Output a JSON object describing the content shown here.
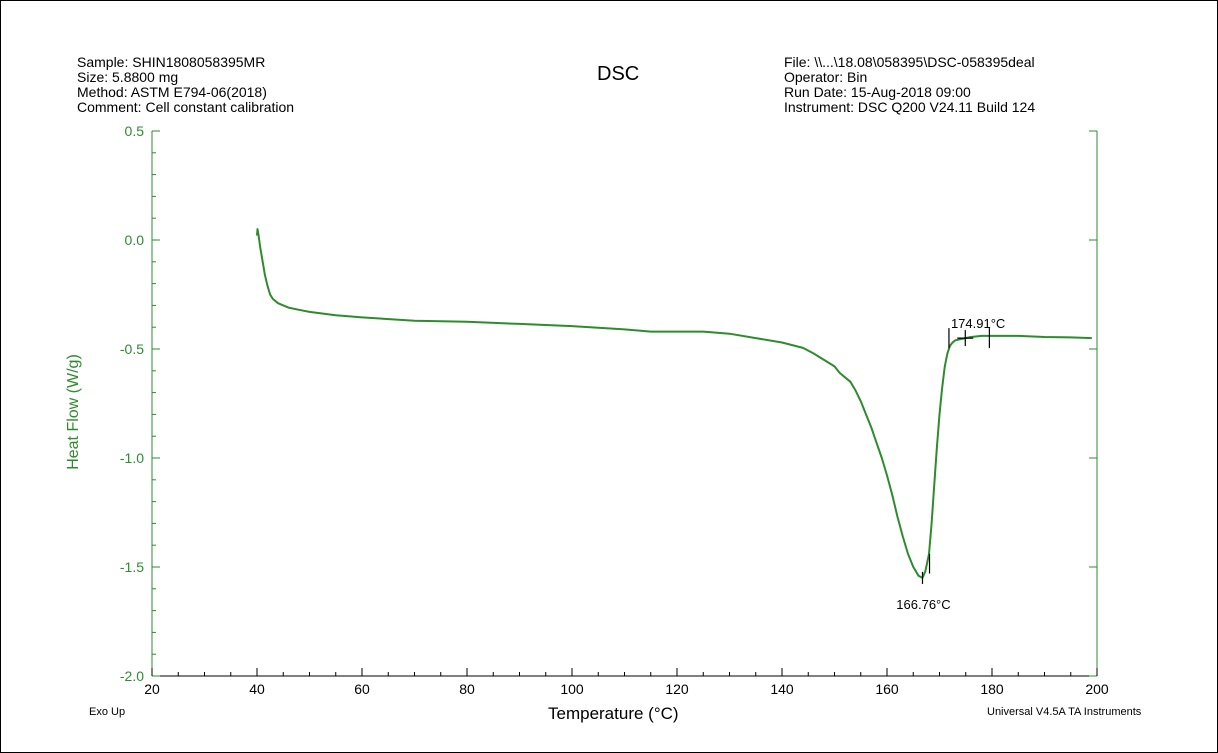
{
  "header": {
    "left": [
      "Sample: SHIN1808058395MR",
      "Size:  5.8800 mg",
      "Method: ASTM E794-06(2018)",
      "Comment: Cell constant calibration"
    ],
    "right": [
      "File: \\\\...\\18.08\\058395\\DSC-058395deal",
      "Operator: Bin",
      "Run Date: 15-Aug-2018 09:00",
      "Instrument: DSC Q200 V24.11 Build 124"
    ]
  },
  "footer": {
    "left": "Exo Up",
    "right": "Universal V4.5A TA Instruments"
  },
  "colors": {
    "curve": "#2e8b2e",
    "axis_y": "#2e8b2e",
    "axis_x": "#000000"
  },
  "chart_data": {
    "type": "line",
    "title": "DSC",
    "xlabel": "Temperature (°C)",
    "ylabel": "Heat Flow (W/g)",
    "xlim": [
      20,
      200
    ],
    "ylim": [
      -2.0,
      0.5
    ],
    "xticks": [
      "20",
      "40",
      "60",
      "80",
      "100",
      "120",
      "140",
      "160",
      "180",
      "200"
    ],
    "yticks": [
      "0.5",
      "0.0",
      "-0.5",
      "-1.0",
      "-1.5",
      "-2.0"
    ],
    "grid": false,
    "series": [
      {
        "x": [
          40.0,
          40.1,
          40.3,
          40.6,
          41.0,
          41.5,
          42.0,
          42.5,
          43.0,
          44.0,
          45.0,
          46.0,
          48.0,
          50.0,
          55.0,
          60.0,
          70.0,
          80.0,
          90.0,
          100.0,
          110.0,
          115.0,
          120.0,
          125.0,
          130.0,
          135.0,
          140.0,
          144.0,
          146.0,
          148.0,
          150.0,
          151.0,
          152.0,
          153.0,
          154.0,
          155.0,
          156.0,
          157.0,
          158.0,
          159.0,
          160.0,
          161.0,
          162.0,
          163.0,
          164.0,
          165.0,
          166.0,
          166.76,
          167.3,
          168.0,
          168.5,
          169.0,
          169.5,
          170.0,
          170.5,
          171.0,
          171.5,
          172.0,
          172.5,
          173.0,
          174.0,
          174.91,
          176.0,
          178.0,
          180.0,
          185.0,
          190.0,
          195.0,
          199.0
        ],
        "y": [
          0.02,
          0.05,
          0.02,
          -0.03,
          -0.09,
          -0.16,
          -0.21,
          -0.25,
          -0.27,
          -0.29,
          -0.3,
          -0.31,
          -0.32,
          -0.33,
          -0.345,
          -0.355,
          -0.37,
          -0.375,
          -0.385,
          -0.395,
          -0.41,
          -0.42,
          -0.42,
          -0.42,
          -0.43,
          -0.45,
          -0.47,
          -0.495,
          -0.52,
          -0.55,
          -0.58,
          -0.61,
          -0.63,
          -0.65,
          -0.69,
          -0.74,
          -0.8,
          -0.86,
          -0.93,
          -1.0,
          -1.08,
          -1.17,
          -1.27,
          -1.36,
          -1.44,
          -1.5,
          -1.54,
          -1.55,
          -1.52,
          -1.44,
          -1.3,
          -1.12,
          -0.95,
          -0.8,
          -0.68,
          -0.58,
          -0.52,
          -0.485,
          -0.47,
          -0.46,
          -0.455,
          -0.45,
          -0.445,
          -0.44,
          -0.44,
          -0.44,
          -0.445,
          -0.447,
          -0.45
        ]
      }
    ],
    "annotations": [
      {
        "label": "174.91°C",
        "x": 174.91,
        "y": -0.45
      },
      {
        "label": "166.76°C",
        "x": 166.76,
        "y": -1.55
      }
    ]
  }
}
